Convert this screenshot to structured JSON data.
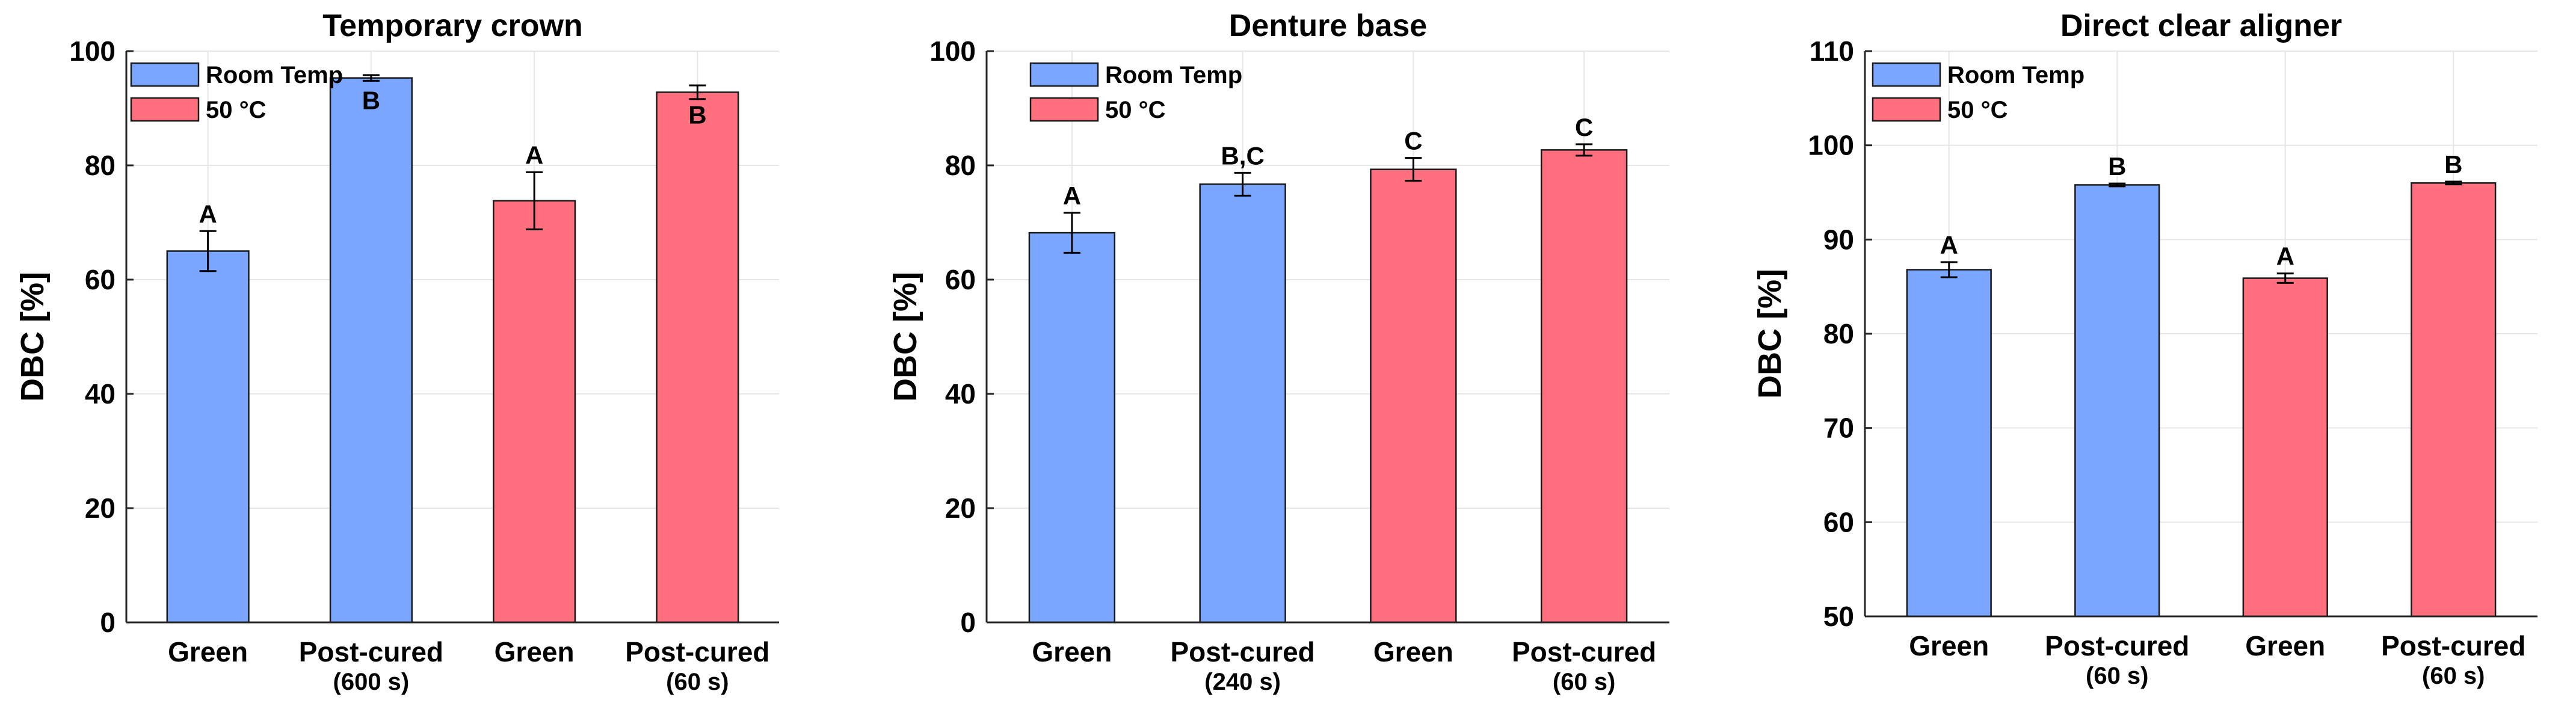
{
  "chart_data": [
    {
      "type": "bar",
      "title": "Temporary crown",
      "ylabel": "DBC [%]",
      "ylim": [
        0,
        100
      ],
      "yticks": [
        0,
        20,
        40,
        60,
        80,
        100
      ],
      "categories": [
        "Green",
        "Post-cured",
        "Green",
        "Post-cured"
      ],
      "category_sublabels": [
        "",
        "(600 s)",
        "",
        "(60 s)"
      ],
      "values": [
        65,
        95.3,
        73.8,
        92.8
      ],
      "errors": [
        3.5,
        0.5,
        5.0,
        1.2
      ],
      "significance": [
        "A",
        "B",
        "A",
        "B"
      ],
      "significance_inside_bar": [
        false,
        true,
        false,
        true
      ],
      "bar_groups": [
        "Room Temp",
        "Room Temp",
        "50 °C",
        "50 °C"
      ],
      "legend": [
        {
          "label": "Room Temp",
          "color": "#7aa6ff"
        },
        {
          "label": "50 °C",
          "color": "#ff6f7d"
        }
      ]
    },
    {
      "type": "bar",
      "title": "Denture base",
      "ylabel": "DBC [%]",
      "ylim": [
        0,
        100
      ],
      "yticks": [
        0,
        20,
        40,
        60,
        80,
        100
      ],
      "categories": [
        "Green",
        "Post-cured",
        "Green",
        "Post-cured"
      ],
      "category_sublabels": [
        "",
        "(240 s)",
        "",
        "(60 s)"
      ],
      "values": [
        68.2,
        76.7,
        79.3,
        82.7
      ],
      "errors": [
        3.5,
        2.0,
        2.0,
        1.0
      ],
      "significance": [
        "A",
        "B,C",
        "C",
        "C"
      ],
      "significance_inside_bar": [
        false,
        false,
        false,
        false
      ],
      "bar_groups": [
        "Room Temp",
        "Room Temp",
        "50 °C",
        "50 °C"
      ],
      "legend": [
        {
          "label": "Room Temp",
          "color": "#7aa6ff"
        },
        {
          "label": "50 °C",
          "color": "#ff6f7d"
        }
      ]
    },
    {
      "type": "bar",
      "title": "Direct clear aligner",
      "ylabel": "DBC [%]",
      "ylim": [
        50,
        110
      ],
      "yticks": [
        50,
        60,
        70,
        80,
        90,
        100,
        110
      ],
      "categories": [
        "Green",
        "Post-cured",
        "Green",
        "Post-cured"
      ],
      "category_sublabels": [
        "",
        "(60 s)",
        "",
        "(60 s)"
      ],
      "values": [
        86.8,
        95.8,
        85.9,
        96.0
      ],
      "errors": [
        0.8,
        0.15,
        0.5,
        0.15
      ],
      "significance": [
        "A",
        "B",
        "A",
        "B"
      ],
      "significance_inside_bar": [
        false,
        false,
        false,
        false
      ],
      "bar_groups": [
        "Room Temp",
        "Room Temp",
        "50 °C",
        "50 °C"
      ],
      "legend": [
        {
          "label": "Room Temp",
          "color": "#7aa6ff"
        },
        {
          "label": "50 °C",
          "color": "#ff6f7d"
        }
      ]
    }
  ]
}
